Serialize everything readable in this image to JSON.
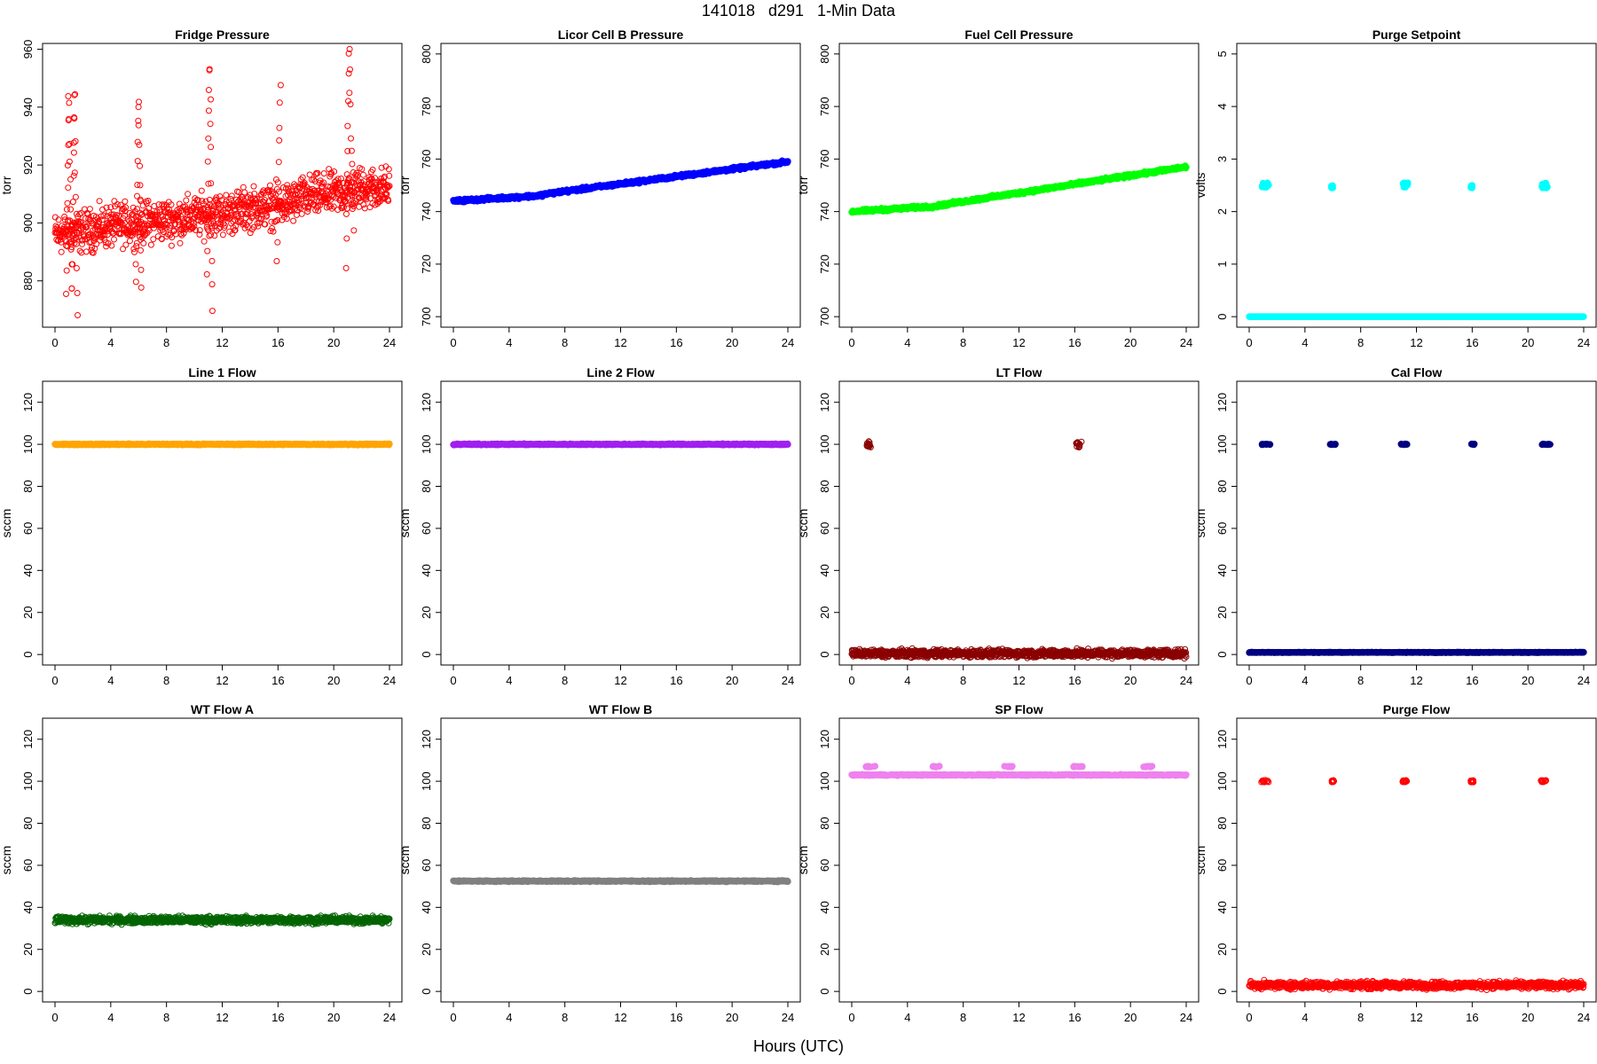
{
  "title": "141018   d291   1-Min Data",
  "xlabel": "Hours (UTC)",
  "chart_data": [
    {
      "type": "scatter",
      "title": "Fridge Pressure",
      "ylabel": "torr",
      "color": "#ff0000",
      "marker": "open-circle",
      "xlim": [
        0,
        24
      ],
      "xticks": [
        0,
        4,
        8,
        12,
        16,
        20,
        24
      ],
      "ylim": [
        864,
        962
      ],
      "yticks": [
        880,
        900,
        920,
        940,
        960
      ],
      "series": [
        {
          "kind": "noisy",
          "x": [
            0,
            1,
            2,
            4,
            6,
            8,
            10,
            11,
            12,
            14,
            16,
            17,
            18,
            20,
            21,
            22,
            24
          ],
          "y": [
            896,
            897,
            897,
            899,
            900,
            901,
            902,
            903,
            903,
            905,
            906,
            907,
            909,
            910,
            911,
            912,
            912
          ],
          "noise": 5
        },
        {
          "kind": "spike",
          "x": [
            0.8,
            1.0,
            1.2,
            1.4,
            1.6
          ],
          "y": [
            876,
            942,
            878,
            944,
            868
          ]
        },
        {
          "kind": "spike",
          "x": [
            5.8,
            6.0,
            6.2
          ],
          "y": [
            880,
            941,
            875
          ]
        },
        {
          "kind": "spike",
          "x": [
            10.9,
            11.1,
            11.3
          ],
          "y": [
            882,
            953,
            870
          ]
        },
        {
          "kind": "spike",
          "x": [
            15.9,
            16.2
          ],
          "y": [
            887,
            948
          ]
        },
        {
          "kind": "spike",
          "x": [
            20.9,
            21.1,
            21.4
          ],
          "y": [
            885,
            959,
            898
          ]
        }
      ]
    },
    {
      "type": "scatter",
      "title": "Licor Cell B Pressure",
      "ylabel": "torr",
      "color": "#0000ff",
      "marker": "filled",
      "xlim": [
        0,
        24
      ],
      "xticks": [
        0,
        4,
        8,
        12,
        16,
        20,
        24
      ],
      "ylim": [
        696,
        804
      ],
      "yticks": [
        700,
        720,
        740,
        760,
        780,
        800
      ],
      "series": [
        {
          "kind": "line",
          "x": [
            0,
            6,
            7,
            24
          ],
          "y": [
            744,
            746,
            747,
            759
          ],
          "noise": 0.4
        }
      ]
    },
    {
      "type": "scatter",
      "title": "Fuel Cell Pressure",
      "ylabel": "torr",
      "color": "#00ff00",
      "marker": "filled",
      "xlim": [
        0,
        24
      ],
      "xticks": [
        0,
        4,
        8,
        12,
        16,
        20,
        24
      ],
      "ylim": [
        696,
        804
      ],
      "yticks": [
        700,
        720,
        740,
        760,
        780,
        800
      ],
      "series": [
        {
          "kind": "line",
          "x": [
            0,
            6,
            7,
            24
          ],
          "y": [
            740,
            742,
            743,
            757
          ],
          "noise": 0.4
        }
      ]
    },
    {
      "type": "scatter",
      "title": "Purge Setpoint",
      "ylabel": "volts",
      "color": "#00ffff",
      "marker": "filled",
      "xlim": [
        0,
        24
      ],
      "xticks": [
        0,
        4,
        8,
        12,
        16,
        20,
        24
      ],
      "ylim": [
        -0.2,
        5.2
      ],
      "yticks": [
        0,
        1,
        2,
        3,
        4,
        5
      ],
      "series": [
        {
          "kind": "line",
          "x": [
            0,
            24
          ],
          "y": [
            0,
            0
          ],
          "noise": 0
        },
        {
          "kind": "cluster",
          "x": [
            0.9,
            1.4
          ],
          "y": [
            2.45,
            2.55
          ]
        },
        {
          "kind": "cluster",
          "x": [
            5.9,
            6.0
          ],
          "y": [
            2.45,
            2.5
          ]
        },
        {
          "kind": "cluster",
          "x": [
            11.0,
            11.4
          ],
          "y": [
            2.45,
            2.55
          ]
        },
        {
          "kind": "cluster",
          "x": [
            15.9,
            16.0
          ],
          "y": [
            2.45,
            2.5
          ]
        },
        {
          "kind": "cluster",
          "x": [
            21.0,
            21.4
          ],
          "y": [
            2.45,
            2.55
          ]
        }
      ]
    },
    {
      "type": "scatter",
      "title": "Line 1 Flow",
      "ylabel": "sccm",
      "color": "#ffa500",
      "marker": "filled",
      "xlim": [
        0,
        24
      ],
      "xticks": [
        0,
        4,
        8,
        12,
        16,
        20,
        24
      ],
      "ylim": [
        -5,
        130
      ],
      "yticks": [
        0,
        20,
        40,
        60,
        80,
        100,
        120
      ],
      "series": [
        {
          "kind": "line",
          "x": [
            0,
            24
          ],
          "y": [
            100,
            100
          ],
          "noise": 0.2
        }
      ]
    },
    {
      "type": "scatter",
      "title": "Line 2 Flow",
      "ylabel": "sccm",
      "color": "#a020f0",
      "marker": "filled",
      "xlim": [
        0,
        24
      ],
      "xticks": [
        0,
        4,
        8,
        12,
        16,
        20,
        24
      ],
      "ylim": [
        -5,
        130
      ],
      "yticks": [
        0,
        20,
        40,
        60,
        80,
        100,
        120
      ],
      "series": [
        {
          "kind": "line",
          "x": [
            0,
            24
          ],
          "y": [
            100,
            100
          ],
          "noise": 0.2
        }
      ]
    },
    {
      "type": "scatter",
      "title": "LT Flow",
      "ylabel": "sccm",
      "color": "#8b0000",
      "marker": "open-circle",
      "xlim": [
        0,
        24
      ],
      "xticks": [
        0,
        4,
        8,
        12,
        16,
        20,
        24
      ],
      "ylim": [
        -5,
        130
      ],
      "yticks": [
        0,
        20,
        40,
        60,
        80,
        100,
        120
      ],
      "series": [
        {
          "kind": "noisy",
          "x": [
            0,
            24
          ],
          "y": [
            0.5,
            0.5
          ],
          "noise": 1.3
        },
        {
          "kind": "cluster",
          "x": [
            1.0,
            1.4
          ],
          "y": [
            98.5,
            101.5
          ]
        },
        {
          "kind": "cluster",
          "x": [
            16.1,
            16.5
          ],
          "y": [
            98.5,
            101.5
          ]
        }
      ]
    },
    {
      "type": "scatter",
      "title": "Cal Flow",
      "ylabel": "sccm",
      "color": "#000080",
      "marker": "filled",
      "xlim": [
        0,
        24
      ],
      "xticks": [
        0,
        4,
        8,
        12,
        16,
        20,
        24
      ],
      "ylim": [
        -5,
        130
      ],
      "yticks": [
        0,
        20,
        40,
        60,
        80,
        100,
        120
      ],
      "series": [
        {
          "kind": "line",
          "x": [
            0,
            24
          ],
          "y": [
            1,
            1
          ],
          "noise": 0.1
        },
        {
          "kind": "cluster",
          "x": [
            0.9,
            1.5
          ],
          "y": [
            99.8,
            100.2
          ]
        },
        {
          "kind": "cluster",
          "x": [
            5.8,
            6.2
          ],
          "y": [
            99.8,
            100.2
          ]
        },
        {
          "kind": "cluster",
          "x": [
            10.9,
            11.4
          ],
          "y": [
            99.8,
            100.2
          ]
        },
        {
          "kind": "cluster",
          "x": [
            15.9,
            16.2
          ],
          "y": [
            99.8,
            100.2
          ]
        },
        {
          "kind": "cluster",
          "x": [
            20.9,
            21.6
          ],
          "y": [
            99.8,
            100.2
          ]
        }
      ]
    },
    {
      "type": "scatter",
      "title": "WT Flow A",
      "ylabel": "sccm",
      "color": "#006400",
      "marker": "open-circle",
      "xlim": [
        0,
        24
      ],
      "xticks": [
        0,
        4,
        8,
        12,
        16,
        20,
        24
      ],
      "ylim": [
        -5,
        130
      ],
      "yticks": [
        0,
        20,
        40,
        60,
        80,
        100,
        120
      ],
      "series": [
        {
          "kind": "noisy",
          "x": [
            0,
            24
          ],
          "y": [
            34,
            34
          ],
          "noise": 1.2
        }
      ]
    },
    {
      "type": "scatter",
      "title": "WT Flow B",
      "ylabel": "sccm",
      "color": "#808080",
      "marker": "filled",
      "xlim": [
        0,
        24
      ],
      "xticks": [
        0,
        4,
        8,
        12,
        16,
        20,
        24
      ],
      "ylim": [
        -5,
        130
      ],
      "yticks": [
        0,
        20,
        40,
        60,
        80,
        100,
        120
      ],
      "series": [
        {
          "kind": "line",
          "x": [
            0,
            24
          ],
          "y": [
            52.5,
            52.5
          ],
          "noise": 0.2
        }
      ]
    },
    {
      "type": "scatter",
      "title": "SP Flow",
      "ylabel": "sccm",
      "color": "#ee82ee",
      "marker": "filled",
      "xlim": [
        0,
        24
      ],
      "xticks": [
        0,
        4,
        8,
        12,
        16,
        20,
        24
      ],
      "ylim": [
        -5,
        130
      ],
      "yticks": [
        0,
        20,
        40,
        60,
        80,
        100,
        120
      ],
      "series": [
        {
          "kind": "line",
          "x": [
            0,
            24
          ],
          "y": [
            103,
            103
          ],
          "noise": 0.2
        },
        {
          "kind": "cluster",
          "x": [
            0.9,
            1.7
          ],
          "y": [
            106.8,
            107.2
          ]
        },
        {
          "kind": "cluster",
          "x": [
            5.8,
            6.3
          ],
          "y": [
            106.8,
            107.2
          ]
        },
        {
          "kind": "cluster",
          "x": [
            10.9,
            11.6
          ],
          "y": [
            106.8,
            107.2
          ]
        },
        {
          "kind": "cluster",
          "x": [
            15.9,
            16.6
          ],
          "y": [
            106.8,
            107.2
          ]
        },
        {
          "kind": "cluster",
          "x": [
            20.9,
            21.6
          ],
          "y": [
            106.8,
            107.2
          ]
        }
      ]
    },
    {
      "type": "scatter",
      "title": "Purge Flow",
      "ylabel": "sccm",
      "color": "#ff0000",
      "marker": "open-circle",
      "xlim": [
        0,
        24
      ],
      "xticks": [
        0,
        4,
        8,
        12,
        16,
        20,
        24
      ],
      "ylim": [
        -5,
        130
      ],
      "yticks": [
        0,
        20,
        40,
        60,
        80,
        100,
        120
      ],
      "series": [
        {
          "kind": "noisy",
          "x": [
            0,
            24
          ],
          "y": [
            3,
            3
          ],
          "noise": 1.2
        },
        {
          "kind": "cluster",
          "x": [
            0.8,
            1.4
          ],
          "y": [
            99.5,
            100.5
          ]
        },
        {
          "kind": "cluster",
          "x": [
            5.9,
            6.1
          ],
          "y": [
            99.5,
            100.5
          ]
        },
        {
          "kind": "cluster",
          "x": [
            11.0,
            11.3
          ],
          "y": [
            99.5,
            100.5
          ]
        },
        {
          "kind": "cluster",
          "x": [
            15.9,
            16.1
          ],
          "y": [
            99.5,
            100.5
          ]
        },
        {
          "kind": "cluster",
          "x": [
            20.9,
            21.3
          ],
          "y": [
            99.5,
            100.5
          ]
        }
      ]
    }
  ]
}
